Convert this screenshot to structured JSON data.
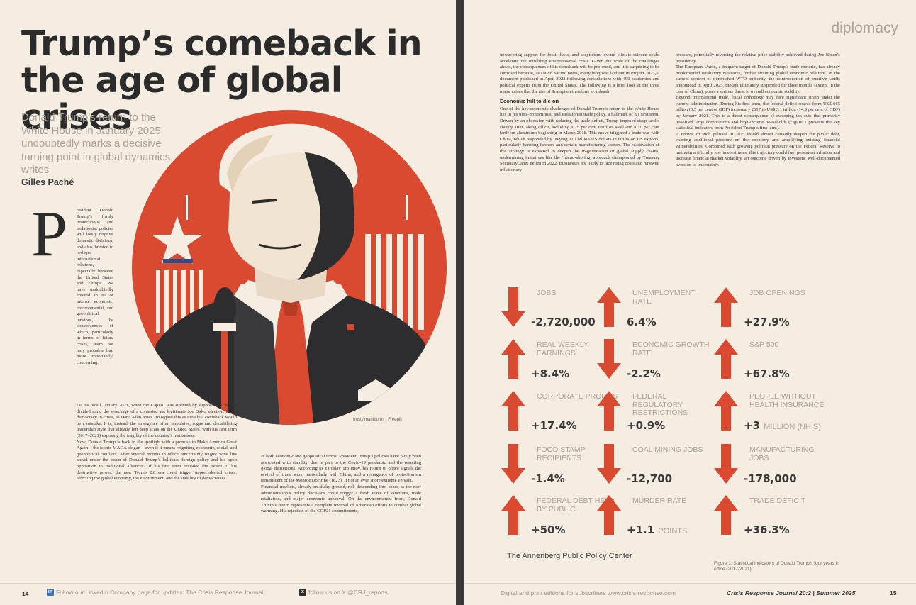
{
  "left_page": {
    "headline": "Trump’s comeback in the age of global crises",
    "standfirst": "Donald Trump’s return to the White House in January 2025 undoubtedly marks a decisive turning point in global dynamics, writes",
    "byline": "Gilles Paché",
    "image_credit": "frustyimaritburns | Freepik",
    "drop_cap": "P",
    "col_narrow": "resident Donald Trump’s firmly protectionist and isolationist policies will likely reignite domestic divisions, and also threaten to reshape international relations, especially between the United States and Europe. We have undoubtedly entered an era of intense economic, environmental, and geopolitical tensions, the consequences of which, particularly in terms of future crises, seem not only probable but, more importantly, concerning.",
    "col_wide": [
      "Let us recall January 2021, when the Capitol was stormed by supporters, a nation divided amid the wreckage of a contested yet legitimate Joe Biden election, and a democracy in crisis, as Dana Allin notes. To regard this as merely a comeback would be a mistake. It is, instead, the emergence of an impulsive, rogue and destabilising leadership style that already left deep scars on the United States, with his first term (2017–2021) exposing the fragility of the country’s institutions.",
      "Now, Donald Trump is back in the spotlight with a promise to Make America Great Again – the iconic MAGA slogan – even if it means reigniting economic, social, and geopolitical conflicts. After several months in office, uncertainty reigns: what lies ahead under the strain of Donald Trump’s bellicose foreign policy and his open opposition to traditional alliances? If his first term revealed the extent of his destructive power, the new Trump 2.0 era could trigger unprecedented crises, affecting the global economy, the environment, and the stability of democracies."
    ],
    "col_mid": [
      "In both economic and geopolitical terms, President Trump’s policies have rarely been associated with stability, due in part to the Covid-19 pandemic and the resulting global disruptions. According to Yaroslav Trofimov, his return to office signals the revival of trade wars, particularly with China, and a resurgence of protectionism reminiscent of the Monroe Doctrine (1823), if not an even more extreme version.",
      "Financial markets, already on shaky ground, risk descending into chaos as the new administration’s policy decisions could trigger a fresh wave of sanctions, trade retaliation, and major economic upheaval. On the environmental front, Donald Trump’s return represents a complete reversal of American efforts to combat global warming. His rejection of the COP21 commitments,"
    ],
    "footer": {
      "page_number": "14",
      "linkedin_text": "Follow our LinkedIn Company page for updates: The Crisis Response Journal",
      "x_text": "follow us on X @CRJ_reports"
    }
  },
  "right_page": {
    "section_tag": "diplomacy",
    "col1_intro": "unwavering support for fossil fuels, and scepticism toward climate science could accelerate the unfolding environmental crisis. Given the scale of the challenges ahead, the consequences of his comeback will be profound, and it is surprising to be surprised because, as David Sacino notes, everything was laid out in Project 2025, a document published in April 2023 following consultations with 400 academics and political experts from the United States. The following is a brief look at the three major crises that the rise of Trumpism threatens to unleash.",
    "col1_subhead": "Economic hill to die on",
    "col1_body": "One of the key economic challenges of Donald Trump’s return to the White House lies in his ultra-protectionist and isolationist trade policy, a hallmark of his first term. Driven by an obsession with reducing the trade deficit, Trump imposed steep tariffs shortly after taking office, including a 25 per cent tariff on steel and a 10 per cent tariff on aluminium beginning in March 2018. This move triggered a trade war with China, which responded by levying 110 billion US dollars in tariffs on US exports, particularly harming farmers and certain manufacturing sectors. The reactivation of this strategy is expected to deepen the fragmentation of global supply chains, undermining initiatives like the ‘friend-shoring’ approach championed by Treasury Secretary Janet Yellen in 2022. Businesses are likely to face rising costs and renewed inflationary",
    "col2": [
      "pressure, potentially reversing the relative price stability achieved during Joe Biden’s presidency.",
      "The European Union, a frequent target of Donald Trump’s trade rhetoric, has already implemented retaliatory measures, further straining global economic relations. In the current context of diminished WTO authority, the reintroduction of punitive tariffs announced in April 2025, though ultimately suspended for three months (except in the case of China), poses a serious threat to overall economic stability.",
      "Beyond international trade, fiscal orthodoxy may face significant strain under the current administration. During his first term, the federal deficit soared from US$ 665 billion (3.5 per cent of GDP) in January 2017 to US$ 3.1 trillion (14.9 per cent of GDP) by January 2021. This is a direct consequence of sweeping tax cuts that primarily benefited large corporations and high-income households (Figure 1 presents the key statistical indicators from President Trump’s first term).",
      "A revival of such policies in 2025 would almost certainly deepen the public debt, exerting additional pressure on the economy and amplifying existing financial vulnerabilities. Combined with growing political pressure on the Federal Reserve to maintain artificially low interest rates, this trajectory could fuel persistent inflation and increase financial market volatility, an outcome driven by investors’ well-documented aversion to uncertainty."
    ],
    "stats": [
      {
        "label": "Jobs",
        "value": "-2,720,000",
        "unit": "",
        "direction": "down"
      },
      {
        "label": "Unemployment rate",
        "value": "6.4%",
        "unit": "",
        "direction": "up"
      },
      {
        "label": "Job openings",
        "value": "+27.9%",
        "unit": "",
        "direction": "up"
      },
      {
        "label": "Real weekly earnings",
        "value": "+8.4%",
        "unit": "",
        "direction": "up"
      },
      {
        "label": "Economic growth rate",
        "value": "-2.2%",
        "unit": "",
        "direction": "down"
      },
      {
        "label": "S&P 500",
        "value": "+67.8%",
        "unit": "",
        "direction": "up"
      },
      {
        "label": "Corporate profits",
        "value": "+17.4%",
        "unit": "",
        "direction": "up"
      },
      {
        "label": "Federal regulatory restrictions",
        "value": "+0.9%",
        "unit": "",
        "direction": "up"
      },
      {
        "label": "People without health insurance",
        "value": "+3",
        "unit": "MILLION (NHIS)",
        "direction": "up"
      },
      {
        "label": "Food stamp recipients",
        "value": "-1.4%",
        "unit": "",
        "direction": "down"
      },
      {
        "label": "Coal mining jobs",
        "value": "-12,700",
        "unit": "",
        "direction": "down"
      },
      {
        "label": "Manufacturing jobs",
        "value": "-178,000",
        "unit": "",
        "direction": "down"
      },
      {
        "label": "Federal debt held by public",
        "value": "+50%",
        "unit": "",
        "direction": "up"
      },
      {
        "label": "Murder rate",
        "value": "+1.1",
        "unit": "POINTS",
        "direction": "up"
      },
      {
        "label": "Trade deficit",
        "value": "+36.3%",
        "unit": "",
        "direction": "up"
      }
    ],
    "stats_source": "The Annenberg Public Policy Center",
    "figure_caption": "Figure 1: Statistical indicators of Donald Trump’s four years in office (2017-2021)",
    "footer": {
      "editions_text": "Digital and print editions for subscribers www.crisis-response.com",
      "journal_text": "Crisis Response Journal 20:2 | Summer 2025",
      "page_number": "15"
    }
  },
  "colors": {
    "paper": "#f5ede2",
    "accent_red": "#d94a30",
    "ink": "#2b2b2b",
    "muted": "#a9a39b"
  }
}
